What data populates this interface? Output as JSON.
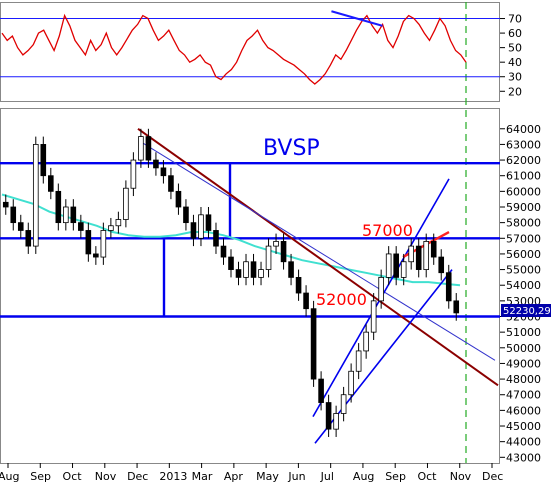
{
  "chart_data": [
    {
      "type": "line",
      "panel": "oscillator",
      "yticks": [
        20,
        30,
        40,
        50,
        60,
        70
      ],
      "ylim": [
        14,
        80
      ],
      "reference_lines": [
        70,
        30
      ],
      "colors": {
        "line": "#e00000",
        "reference": "#1a1aff",
        "trendline": "#1a1aff"
      },
      "trendline": {
        "from": [
          0.71,
          75
        ],
        "to": [
          0.82,
          65
        ]
      },
      "series": [
        {
          "values": [
            60,
            55,
            58,
            50,
            45,
            48,
            52,
            60,
            62,
            55,
            48,
            58,
            72,
            65,
            55,
            50,
            45,
            55,
            48,
            52,
            60,
            50,
            45,
            50,
            56,
            62,
            66,
            72,
            70,
            62,
            55,
            58,
            62,
            55,
            48,
            45,
            40,
            42,
            45,
            40,
            38,
            30,
            28,
            32,
            35,
            40,
            48,
            55,
            58,
            62,
            55,
            50,
            48,
            45,
            42,
            40,
            38,
            35,
            32,
            28,
            25,
            28,
            32,
            38,
            45,
            42,
            48,
            55,
            62,
            68,
            72,
            65,
            60,
            66,
            55,
            50,
            58,
            68,
            72,
            70,
            66,
            60,
            55,
            62,
            70,
            65,
            55,
            48,
            45,
            40
          ]
        }
      ]
    },
    {
      "type": "candlestick",
      "title": "BVSP",
      "last_value_label": "52230,29",
      "ylim": [
        42700,
        65200
      ],
      "yticks": [
        43000,
        44000,
        45000,
        46000,
        47000,
        48000,
        49000,
        50000,
        51000,
        52000,
        53000,
        54000,
        55000,
        56000,
        57000,
        58000,
        59000,
        60000,
        61000,
        62000,
        63000,
        64000
      ],
      "months": [
        "Aug",
        "Sep",
        "Oct",
        "Nov",
        "Dec",
        "2013",
        "Mar",
        "Apr",
        "May",
        "Jun",
        "Jul",
        "Aug",
        "Sep",
        "Oct",
        "Nov",
        "Dec"
      ],
      "annotations": [
        {
          "text": "57000",
          "value": 57000,
          "color": "#ff0000"
        },
        {
          "text": "52000",
          "value": 52000,
          "color": "#ff0000"
        }
      ],
      "horizontal_levels": [
        61800,
        57000,
        52000
      ],
      "colors": {
        "candles": "#000000",
        "moving_average": "#40e0d0",
        "levels": "#0000ee",
        "downtrend": "#8b0000",
        "last_label_bg": "#0000aa"
      },
      "moving_average": [
        59800,
        59500,
        59200,
        58700,
        58400,
        58100,
        57800,
        57400,
        57200,
        57100,
        57100,
        57200,
        57400,
        57400,
        57200,
        56900,
        56500,
        56200,
        55900,
        55600,
        55400,
        55200,
        55000,
        54800,
        54600,
        54400,
        54200,
        54200,
        54100,
        54000
      ],
      "closes": [
        59000,
        58000,
        57500,
        56500,
        63000,
        61000,
        60000,
        58000,
        59000,
        58000,
        57500,
        56000,
        55800,
        57500,
        57800,
        58200,
        60200,
        62000,
        63500,
        62000,
        61500,
        61000,
        60000,
        59000,
        58000,
        57000,
        58500,
        57500,
        56500,
        55800,
        55000,
        54500,
        55500,
        54500,
        55000,
        56500,
        56800,
        55500,
        54500,
        53500,
        52500,
        48000,
        46500,
        44800,
        45800,
        47000,
        48500,
        49800,
        51000,
        53000,
        54500,
        56000,
        54500,
        55500,
        56500,
        55000,
        56800,
        55800,
        54800,
        53000,
        52230
      ]
    }
  ]
}
